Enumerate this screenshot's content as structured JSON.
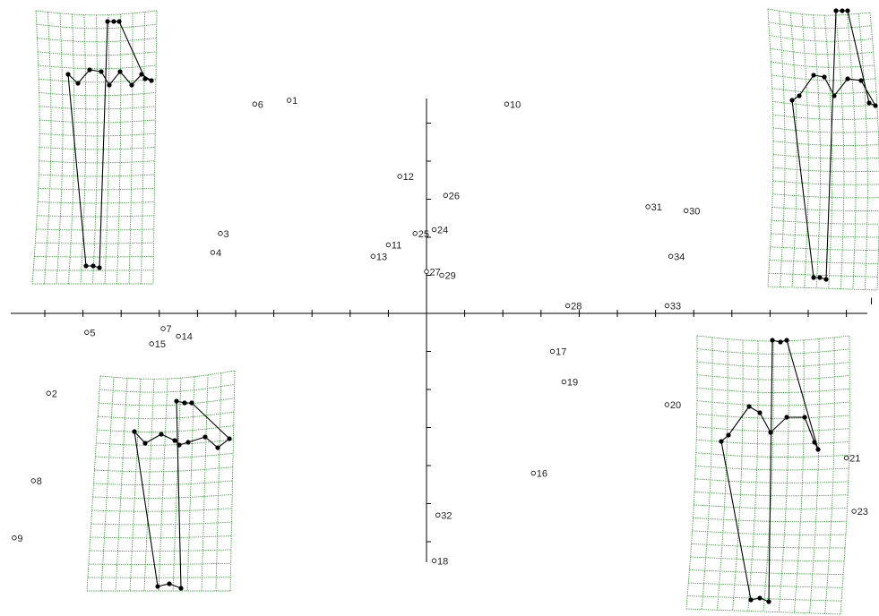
{
  "chart_data": {
    "type": "scatter",
    "title": "",
    "xlabel": "",
    "ylabel": "",
    "axis_end_label": "I",
    "xlim": [
      -1.1,
      1.2
    ],
    "ylim": [
      -0.66,
      0.57
    ],
    "grid": false,
    "points": [
      {
        "label": "1",
        "x": -0.36,
        "y": 0.56
      },
      {
        "label": "2",
        "x": -0.99,
        "y": -0.21
      },
      {
        "label": "3",
        "x": -0.54,
        "y": 0.21
      },
      {
        "label": "4",
        "x": -0.56,
        "y": 0.16
      },
      {
        "label": "5",
        "x": -0.89,
        "y": -0.05
      },
      {
        "label": "6",
        "x": -0.45,
        "y": 0.55
      },
      {
        "label": "7",
        "x": -0.69,
        "y": -0.04
      },
      {
        "label": "8",
        "x": -1.03,
        "y": -0.44
      },
      {
        "label": "9",
        "x": -1.08,
        "y": -0.59
      },
      {
        "label": "10",
        "x": 0.21,
        "y": 0.55
      },
      {
        "label": "11",
        "x": -0.1,
        "y": 0.18
      },
      {
        "label": "12",
        "x": -0.07,
        "y": 0.36
      },
      {
        "label": "13",
        "x": -0.14,
        "y": 0.15
      },
      {
        "label": "14",
        "x": -0.65,
        "y": -0.06
      },
      {
        "label": "15",
        "x": -0.72,
        "y": -0.08
      },
      {
        "label": "16",
        "x": 0.28,
        "y": -0.42
      },
      {
        "label": "17",
        "x": 0.33,
        "y": -0.1
      },
      {
        "label": "18",
        "x": 0.02,
        "y": -0.65
      },
      {
        "label": "19",
        "x": 0.36,
        "y": -0.18
      },
      {
        "label": "20",
        "x": 0.63,
        "y": -0.24
      },
      {
        "label": "21",
        "x": 1.1,
        "y": -0.38
      },
      {
        "label": "23",
        "x": 1.12,
        "y": -0.52
      },
      {
        "label": "24",
        "x": 0.02,
        "y": 0.22
      },
      {
        "label": "25",
        "x": -0.03,
        "y": 0.21
      },
      {
        "label": "26",
        "x": 0.05,
        "y": 0.31
      },
      {
        "label": "27",
        "x": 0.0,
        "y": 0.11
      },
      {
        "label": "28",
        "x": 0.37,
        "y": 0.02
      },
      {
        "label": "29",
        "x": 0.04,
        "y": 0.1
      },
      {
        "label": "30",
        "x": 0.68,
        "y": 0.27
      },
      {
        "label": "31",
        "x": 0.58,
        "y": 0.28
      },
      {
        "label": "32",
        "x": 0.03,
        "y": -0.53
      },
      {
        "label": "33",
        "x": 0.63,
        "y": 0.02
      },
      {
        "label": "34",
        "x": 0.64,
        "y": 0.15
      }
    ]
  },
  "colors": {
    "grid": "#3a9a3a",
    "axis": "#000000",
    "point_fill": "#ffffff"
  },
  "deformation_panels": [
    {
      "name": "top-left"
    },
    {
      "name": "top-right"
    },
    {
      "name": "bottom-left"
    },
    {
      "name": "bottom-right"
    }
  ]
}
